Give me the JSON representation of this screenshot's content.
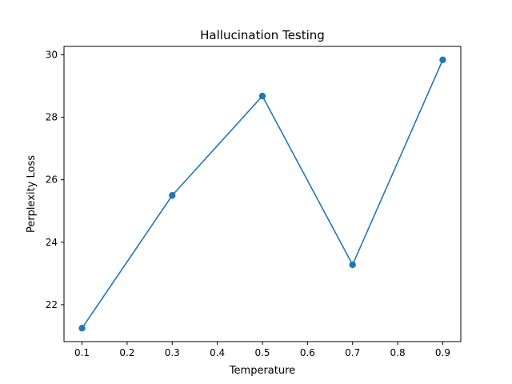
{
  "chart_data": {
    "type": "line",
    "title": "Hallucination Testing",
    "xlabel": "Temperature",
    "ylabel": "Perplexity Loss",
    "x": [
      0.1,
      0.3,
      0.5,
      0.7,
      0.9
    ],
    "series": [
      {
        "values": [
          21.25,
          25.5,
          28.68,
          23.28,
          29.84
        ],
        "color": "#1f77b4",
        "marker": "circle"
      }
    ],
    "xticks": [
      0.1,
      0.2,
      0.3,
      0.4,
      0.5,
      0.6,
      0.7,
      0.8,
      0.9
    ],
    "xtick_labels": [
      "0.1",
      "0.2",
      "0.3",
      "0.4",
      "0.5",
      "0.6",
      "0.7",
      "0.8",
      "0.9"
    ],
    "yticks": [
      22,
      24,
      26,
      28,
      30
    ],
    "ytick_labels": [
      "22",
      "24",
      "26",
      "28",
      "30"
    ],
    "xlim": [
      0.06,
      0.94
    ],
    "ylim": [
      20.82,
      30.27
    ],
    "grid": false,
    "legend": "none"
  }
}
